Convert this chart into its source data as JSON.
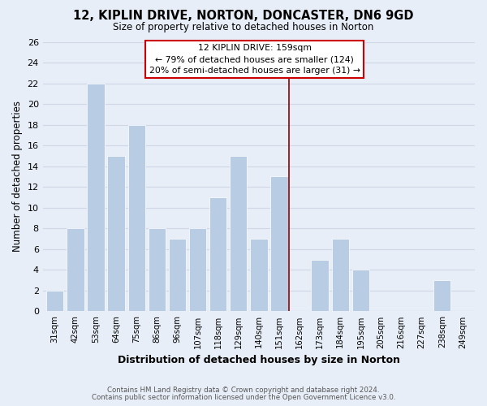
{
  "title": "12, KIPLIN DRIVE, NORTON, DONCASTER, DN6 9GD",
  "subtitle": "Size of property relative to detached houses in Norton",
  "xlabel": "Distribution of detached houses by size in Norton",
  "ylabel": "Number of detached properties",
  "footer_line1": "Contains HM Land Registry data © Crown copyright and database right 2024.",
  "footer_line2": "Contains public sector information licensed under the Open Government Licence v3.0.",
  "bar_labels": [
    "31sqm",
    "42sqm",
    "53sqm",
    "64sqm",
    "75sqm",
    "86sqm",
    "96sqm",
    "107sqm",
    "118sqm",
    "129sqm",
    "140sqm",
    "151sqm",
    "162sqm",
    "173sqm",
    "184sqm",
    "195sqm",
    "205sqm",
    "216sqm",
    "227sqm",
    "238sqm",
    "249sqm"
  ],
  "bar_values": [
    2,
    8,
    22,
    15,
    18,
    8,
    7,
    8,
    11,
    15,
    7,
    13,
    0,
    5,
    7,
    4,
    0,
    0,
    0,
    3,
    0
  ],
  "bar_color": "#b8cce4",
  "bar_edge_color": "#ffffff",
  "grid_color": "#d0d8e8",
  "vline_color": "#8b0000",
  "ylim": [
    0,
    26
  ],
  "yticks": [
    0,
    2,
    4,
    6,
    8,
    10,
    12,
    14,
    16,
    18,
    20,
    22,
    24,
    26
  ],
  "annotation_title": "12 KIPLIN DRIVE: 159sqm",
  "annotation_line1": "← 79% of detached houses are smaller (124)",
  "annotation_line2": "20% of semi-detached houses are larger (31) →",
  "bg_color": "#e8eef7"
}
